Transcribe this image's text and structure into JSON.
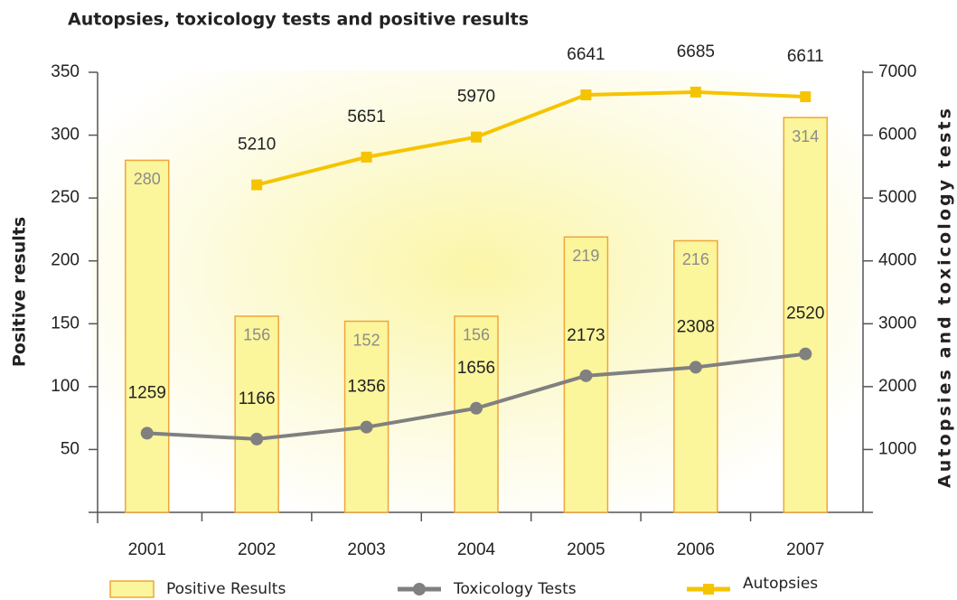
{
  "chart_data": {
    "type": "bar",
    "title": "Autopsies, toxicology tests and positive results",
    "y_label": "Positive results",
    "y2_label": "Autopsies and toxicology tests",
    "categories": [
      "2001",
      "2002",
      "2003",
      "2004",
      "2005",
      "2006",
      "2007"
    ],
    "ylim": [
      0,
      350
    ],
    "yticks": [
      50,
      100,
      150,
      200,
      250,
      300,
      350
    ],
    "y2lim": [
      0,
      7000
    ],
    "y2ticks": [
      1000,
      2000,
      3000,
      4000,
      5000,
      6000,
      7000
    ],
    "series": [
      {
        "name": "Positive Results",
        "type": "bar",
        "color": "#fbf59c",
        "edge_color": "#f0a53a",
        "values": [
          280,
          156,
          152,
          156,
          219,
          216,
          314
        ]
      },
      {
        "name": "Toxicology Tests",
        "type": "line",
        "axis": "y2",
        "color": "#808080",
        "values": [
          1259,
          1166,
          1356,
          1656,
          2173,
          2308,
          2520
        ]
      },
      {
        "name": "Autopsies",
        "type": "line",
        "axis": "y2",
        "color": "#f5c400",
        "values": [
          null,
          5210,
          5651,
          5970,
          6641,
          6685,
          6611
        ]
      }
    ]
  }
}
